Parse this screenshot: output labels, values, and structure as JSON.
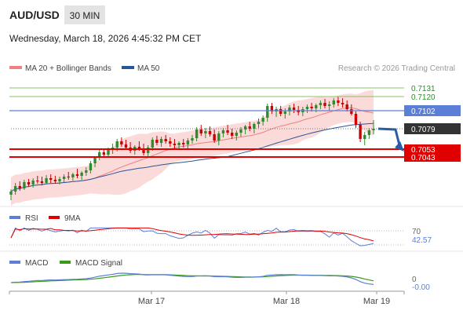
{
  "header": {
    "symbol": "AUD/USD",
    "interval": "30 MIN",
    "datetime": "Wednesday, March 18, 2026 4:45:32 PM CET"
  },
  "legend_main": [
    {
      "label": "MA 20 + Bollinger Bands",
      "color": "#f08080"
    },
    {
      "label": "MA 50",
      "color": "#2a5599"
    }
  ],
  "credit": "Research © 2026 Trading Central",
  "legend_rsi": [
    {
      "label": "RSI",
      "color": "#5b7fd6"
    },
    {
      "label": "9MA",
      "color": "#e00000"
    }
  ],
  "legend_macd": [
    {
      "label": "MACD",
      "color": "#5b7fd6"
    },
    {
      "label": "MACD Signal",
      "color": "#3a9a1a"
    }
  ],
  "colors": {
    "up": "#2e8b2e",
    "down": "#cc0000",
    "band_fill": "#fbdada",
    "ma20": "#f08080",
    "ma50": "#2a5599",
    "resistance": "#8cc06a",
    "pivot": "#5b7fd6",
    "support": "#e00000",
    "current": "#333333",
    "arrow": "#2a5da8"
  },
  "chart_data": {
    "type": "candlestick",
    "x_ticks": [
      "Mar 17",
      "Mar 18",
      "Mar 19"
    ],
    "price_levels": [
      {
        "value": 0.7131,
        "label": "0.7131",
        "kind": "resistance"
      },
      {
        "value": 0.712,
        "label": "0.7120",
        "kind": "resistance"
      },
      {
        "value": 0.7102,
        "label": "0.7102",
        "kind": "pivot"
      },
      {
        "value": 0.7079,
        "label": "0.7079",
        "kind": "current"
      },
      {
        "value": 0.7053,
        "label": "0.7053",
        "kind": "support"
      },
      {
        "value": 0.7043,
        "label": "0.7043",
        "kind": "support"
      }
    ],
    "price_range": [
      0.6985,
      0.7145
    ],
    "ohlc": [
      [
        0.6995,
        0.7002,
        0.6988,
        0.6999
      ],
      [
        0.6999,
        0.701,
        0.6995,
        0.7006
      ],
      [
        0.7006,
        0.7012,
        0.7,
        0.7003
      ],
      [
        0.7003,
        0.7014,
        0.7001,
        0.7011
      ],
      [
        0.7011,
        0.7015,
        0.7005,
        0.7008
      ],
      [
        0.7008,
        0.7016,
        0.7004,
        0.7013
      ],
      [
        0.7013,
        0.7019,
        0.7009,
        0.7012
      ],
      [
        0.7012,
        0.7018,
        0.7007,
        0.701
      ],
      [
        0.701,
        0.702,
        0.7008,
        0.7016
      ],
      [
        0.7016,
        0.7021,
        0.701,
        0.7014
      ],
      [
        0.7014,
        0.7019,
        0.7009,
        0.7012
      ],
      [
        0.7012,
        0.7018,
        0.7008,
        0.7015
      ],
      [
        0.7015,
        0.7021,
        0.7011,
        0.7018
      ],
      [
        0.7018,
        0.7024,
        0.7014,
        0.7017
      ],
      [
        0.7017,
        0.7023,
        0.7013,
        0.7021
      ],
      [
        0.7021,
        0.7028,
        0.7016,
        0.7019
      ],
      [
        0.7019,
        0.7025,
        0.7014,
        0.7023
      ],
      [
        0.7023,
        0.703,
        0.7019,
        0.7026
      ],
      [
        0.7026,
        0.7038,
        0.7022,
        0.7035
      ],
      [
        0.7035,
        0.7044,
        0.703,
        0.7042
      ],
      [
        0.7042,
        0.7052,
        0.7039,
        0.7049
      ],
      [
        0.7049,
        0.7054,
        0.7043,
        0.7046
      ],
      [
        0.7046,
        0.7055,
        0.7042,
        0.7052
      ],
      [
        0.7052,
        0.706,
        0.7047,
        0.7055
      ],
      [
        0.7055,
        0.7066,
        0.705,
        0.7063
      ],
      [
        0.7063,
        0.7068,
        0.7056,
        0.7059
      ],
      [
        0.7059,
        0.7065,
        0.7052,
        0.7055
      ],
      [
        0.7055,
        0.7062,
        0.7048,
        0.7051
      ],
      [
        0.7051,
        0.7058,
        0.7046,
        0.7056
      ],
      [
        0.7056,
        0.7063,
        0.7051,
        0.7054
      ],
      [
        0.7054,
        0.706,
        0.7045,
        0.7048
      ],
      [
        0.7048,
        0.7058,
        0.7044,
        0.7055
      ],
      [
        0.7055,
        0.7068,
        0.7051,
        0.7065
      ],
      [
        0.7065,
        0.707,
        0.7058,
        0.7061
      ],
      [
        0.7061,
        0.7069,
        0.7056,
        0.7066
      ],
      [
        0.7066,
        0.7071,
        0.706,
        0.7063
      ],
      [
        0.7063,
        0.7068,
        0.7056,
        0.706
      ],
      [
        0.706,
        0.7066,
        0.7054,
        0.7058
      ],
      [
        0.7058,
        0.7063,
        0.7052,
        0.7061
      ],
      [
        0.7061,
        0.7066,
        0.7055,
        0.7059
      ],
      [
        0.7059,
        0.7067,
        0.7054,
        0.7064
      ],
      [
        0.7064,
        0.7071,
        0.706,
        0.7067
      ],
      [
        0.7067,
        0.7081,
        0.7063,
        0.7078
      ],
      [
        0.7078,
        0.7084,
        0.707,
        0.7073
      ],
      [
        0.7073,
        0.708,
        0.7067,
        0.7076
      ],
      [
        0.7076,
        0.7082,
        0.7069,
        0.7072
      ],
      [
        0.7072,
        0.7078,
        0.7061,
        0.7064
      ],
      [
        0.7064,
        0.7076,
        0.7058,
        0.7073
      ],
      [
        0.7073,
        0.708,
        0.7068,
        0.7077
      ],
      [
        0.7077,
        0.7084,
        0.7071,
        0.7074
      ],
      [
        0.7074,
        0.7079,
        0.7066,
        0.707
      ],
      [
        0.707,
        0.7077,
        0.7064,
        0.7074
      ],
      [
        0.7074,
        0.7081,
        0.7069,
        0.7078
      ],
      [
        0.7078,
        0.7084,
        0.7072,
        0.7082
      ],
      [
        0.7082,
        0.7088,
        0.7076,
        0.7079
      ],
      [
        0.7079,
        0.7087,
        0.7073,
        0.7085
      ],
      [
        0.7085,
        0.7092,
        0.708,
        0.7088
      ],
      [
        0.7088,
        0.7096,
        0.7083,
        0.7093
      ],
      [
        0.7093,
        0.7111,
        0.7088,
        0.7108
      ],
      [
        0.7108,
        0.7112,
        0.7098,
        0.7101
      ],
      [
        0.7101,
        0.7107,
        0.7094,
        0.7104
      ],
      [
        0.7104,
        0.7108,
        0.7095,
        0.7098
      ],
      [
        0.7098,
        0.7105,
        0.7092,
        0.7101
      ],
      [
        0.7101,
        0.7109,
        0.7096,
        0.7106
      ],
      [
        0.7106,
        0.7111,
        0.7099,
        0.7103
      ],
      [
        0.7103,
        0.7108,
        0.7096,
        0.71
      ],
      [
        0.71,
        0.7107,
        0.7095,
        0.7104
      ],
      [
        0.7104,
        0.711,
        0.7099,
        0.7107
      ],
      [
        0.7107,
        0.7112,
        0.7101,
        0.7105
      ],
      [
        0.7105,
        0.7111,
        0.71,
        0.7109
      ],
      [
        0.7109,
        0.7115,
        0.7104,
        0.7112
      ],
      [
        0.7112,
        0.7117,
        0.7105,
        0.7108
      ],
      [
        0.7108,
        0.7114,
        0.7102,
        0.711
      ],
      [
        0.711,
        0.7118,
        0.7106,
        0.7115
      ],
      [
        0.7115,
        0.712,
        0.7108,
        0.7112
      ],
      [
        0.7112,
        0.7118,
        0.7106,
        0.711
      ],
      [
        0.711,
        0.7115,
        0.7101,
        0.7104
      ],
      [
        0.7104,
        0.711,
        0.7096,
        0.7098
      ],
      [
        0.7098,
        0.7101,
        0.708,
        0.7084
      ],
      [
        0.7084,
        0.7088,
        0.7062,
        0.7066
      ],
      [
        0.7066,
        0.7075,
        0.7058,
        0.7071
      ],
      [
        0.7071,
        0.708,
        0.7066,
        0.7077
      ],
      [
        0.7077,
        0.709,
        0.7072,
        0.7079
      ]
    ],
    "rsi_levels": [
      70,
      42.57,
      30
    ],
    "rsi_label": "42.57",
    "macd_levels": [
      0,
      -0.0
    ],
    "macd_label": "-0.00",
    "macd_zero_label": "0",
    "rsi_top_label": "70"
  }
}
